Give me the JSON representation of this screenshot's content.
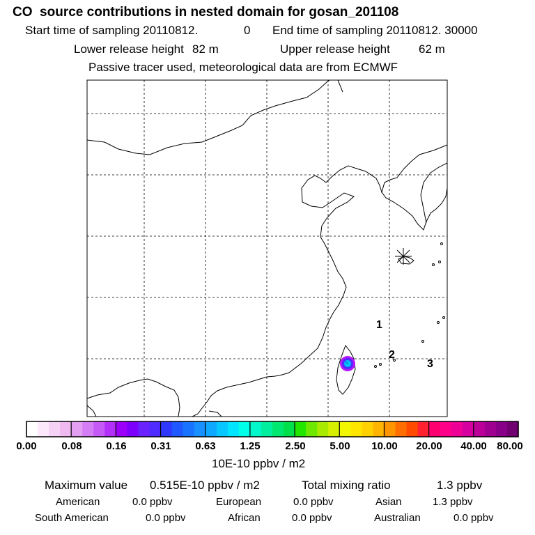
{
  "header": {
    "title": "CO  source contributions in nested domain for gosan_201108",
    "start_label": "Start time of sampling 20110812.",
    "start_hour": "0",
    "end_label": "End time of sampling 20110812. 30000",
    "lower_label": "Lower release height",
    "lower_value": "82 m",
    "upper_label": "Upper release height",
    "upper_value": "62 m",
    "note": "Passive tracer used, meteorological data are from ECMWF"
  },
  "map": {
    "markers": [
      {
        "label": "1"
      },
      {
        "label": "2"
      },
      {
        "label": "3"
      }
    ]
  },
  "colorbar": {
    "colors": [
      "#ffffff",
      "#fbe8fb",
      "#f6d1f6",
      "#f0baf0",
      "#e3a0f3",
      "#d57df5",
      "#c55af7",
      "#b330f9",
      "#9c00fb",
      "#7d00fc",
      "#6a22ff",
      "#4f2bff",
      "#2f37ff",
      "#2058ff",
      "#1a73ff",
      "#1890ff",
      "#0fa8ff",
      "#06c7ff",
      "#00e5ff",
      "#00ffe8",
      "#00f7c9",
      "#00ef9f",
      "#00e870",
      "#00e04a",
      "#22e500",
      "#6ee800",
      "#a8ea00",
      "#d6f000",
      "#f2f700",
      "#ffe600",
      "#ffd100",
      "#ffb500",
      "#ff9500",
      "#ff6e00",
      "#ff4a00",
      "#ff2030",
      "#ff0070",
      "#ff008a",
      "#ee0096",
      "#d600a0",
      "#bb0098",
      "#9f0090",
      "#880088",
      "#700070"
    ],
    "ticks": [
      "0.00",
      "0.08",
      "0.16",
      "0.31",
      "0.63",
      "1.25",
      "2.50",
      "5.00",
      "10.00",
      "20.00",
      "40.00",
      "80.00"
    ],
    "unit": "10E-10 ppbv / m2"
  },
  "stats": {
    "max_label": "Maximum value",
    "max_value": "0.515E-10 ppbv / m2",
    "total_label": "Total mixing ratio",
    "total_value": "1.3 ppbv"
  },
  "regions": [
    {
      "name": "American",
      "value": "0.0 ppbv"
    },
    {
      "name": "European",
      "value": "0.0 ppbv"
    },
    {
      "name": "Asian",
      "value": "1.3 ppbv"
    },
    {
      "name": "South American",
      "value": "0.0 ppbv"
    },
    {
      "name": "African",
      "value": "0.0 ppbv"
    },
    {
      "name": "Australian",
      "value": "0.0 ppbv"
    }
  ]
}
